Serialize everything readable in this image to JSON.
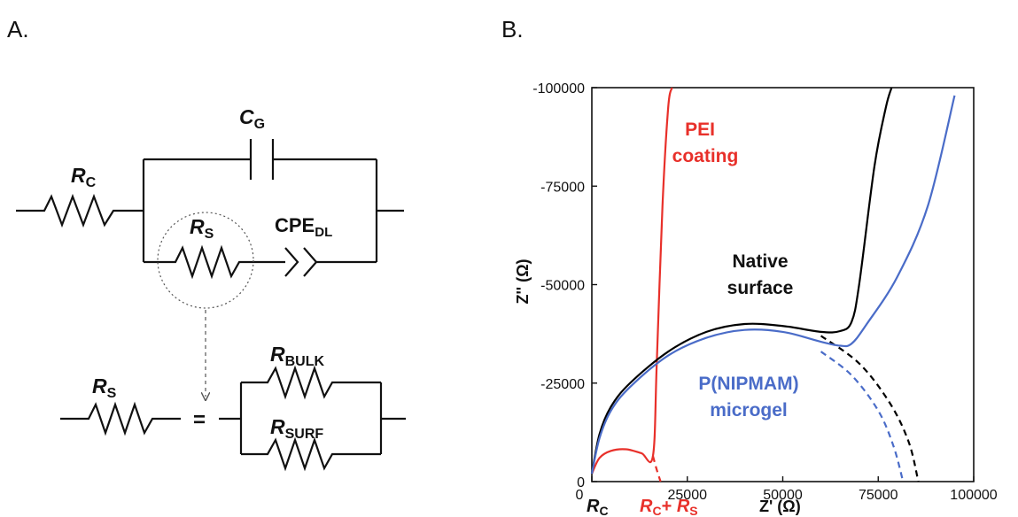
{
  "panel_a": {
    "label": "A.",
    "rc": {
      "main": "R",
      "sub": "C"
    },
    "cg": {
      "main": "C",
      "sub": "G"
    },
    "rs": {
      "main": "R",
      "sub": "S"
    },
    "cpe": {
      "main": "CPE",
      "sub": "DL"
    },
    "rs2": {
      "main": "R",
      "sub": "S"
    },
    "equals": "=",
    "rbulk": {
      "main": "R",
      "sub": "BULK"
    },
    "rsurf": {
      "main": "R",
      "sub": "SURF"
    }
  },
  "panel_b": {
    "label": "B.",
    "y_axis_label": "Z'' (Ω)",
    "x_axis_label": "Z' (Ω)",
    "x_marker_rc": {
      "main": "R",
      "sub": "C"
    },
    "x_marker_rcrs": {
      "a_main": "R",
      "a_sub": "C",
      "plus": "+ ",
      "b_main": "R",
      "b_sub": "S"
    },
    "annotations": {
      "pei_line1": "PEI",
      "pei_line2": "coating",
      "native_line1": "Native",
      "native_line2": "surface",
      "microgel_line1": "P(NIPMAM)",
      "microgel_line2": "microgel"
    },
    "colors": {
      "pei": "#e8302a",
      "native": "#000000",
      "microgel": "#4a6cc8"
    }
  },
  "chart_data": {
    "type": "line",
    "x_ticks": [
      "0",
      "25000",
      "50000",
      "75000",
      "100000"
    ],
    "y_ticks": [
      "0",
      "-25000",
      "-50000",
      "-75000",
      "-100000"
    ],
    "xlim": [
      0,
      100000
    ],
    "ylim": [
      0,
      100000
    ],
    "series": [
      {
        "name": "PEI coating",
        "color": "#e8302a",
        "style": "solid",
        "x": [
          0,
          2000,
          5000,
          9000,
          13000,
          16000,
          17000,
          18500,
          20000,
          21000
        ],
        "y": [
          2000,
          6000,
          7800,
          8200,
          7200,
          6500,
          30000,
          70000,
          95000,
          100000
        ]
      },
      {
        "name": "PEI coating (fit)",
        "color": "#e8302a",
        "style": "dashed",
        "x": [
          16000,
          17000,
          18000
        ],
        "y": [
          6500,
          3000,
          0
        ]
      },
      {
        "name": "Native surface",
        "color": "#000000",
        "style": "solid",
        "x": [
          0,
          2000,
          5000,
          10000,
          20000,
          30000,
          40000,
          50000,
          60000,
          65000,
          68000,
          70000,
          74000,
          77000,
          78500
        ],
        "y": [
          2000,
          12000,
          19000,
          25000,
          33000,
          38000,
          40000,
          39500,
          38000,
          38200,
          40500,
          50000,
          80000,
          95000,
          100000
        ]
      },
      {
        "name": "Native surface (fit)",
        "color": "#000000",
        "style": "dashed",
        "x": [
          60000,
          70000,
          78000,
          83000,
          85500
        ],
        "y": [
          37000,
          30000,
          20000,
          10000,
          0
        ]
      },
      {
        "name": "P(NIPMAM) microgel",
        "color": "#4a6cc8",
        "style": "solid",
        "x": [
          0,
          2000,
          5000,
          10000,
          20000,
          30000,
          40000,
          50000,
          60000,
          65000,
          68000,
          72000,
          80000,
          88000,
          95000
        ],
        "y": [
          2000,
          11000,
          18000,
          24000,
          32000,
          36500,
          38500,
          38000,
          35500,
          34500,
          35000,
          40000,
          52000,
          70000,
          98000
        ]
      },
      {
        "name": "P(NIPMAM) microgel (fit)",
        "color": "#4a6cc8",
        "style": "dashed",
        "x": [
          60000,
          68000,
          75000,
          79000,
          81500
        ],
        "y": [
          33000,
          27000,
          18000,
          9000,
          0
        ]
      }
    ]
  }
}
